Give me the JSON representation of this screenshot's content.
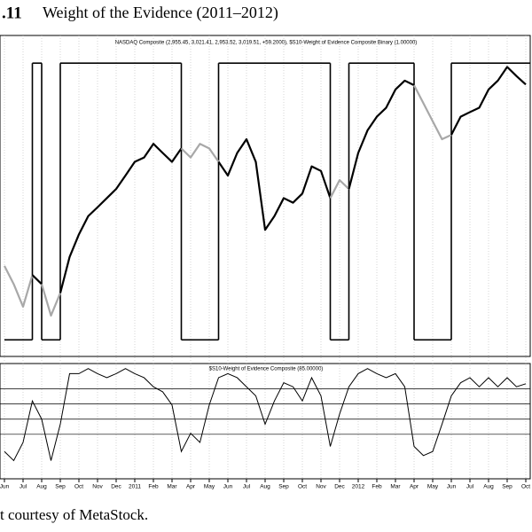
{
  "header": {
    "number": ".11",
    "title": "Weight of the Evidence (2011–2012)"
  },
  "caption": "t courtesy of MetaStock.",
  "chart_data": [
    {
      "type": "line",
      "title": "NASDAQ Composite (2,955.45, 3,021.41, 2,953.52, 3,019.51, +59.2000), $S10-Weight of Evidence Composite Binary (1.00000)",
      "ylim": [
        1968,
        3304
      ],
      "y2lim": [
        -0.06,
        1.1
      ],
      "series": [
        {
          "color": "#000000",
          "inactive_color": "#a8a8a8",
          "values": [
            2345,
            2269,
            2175,
            2307,
            2269,
            2138,
            2232,
            2382,
            2476,
            2552,
            2589,
            2627,
            2665,
            2721,
            2778,
            2796,
            2853,
            2815,
            2778,
            2834,
            2796,
            2853,
            2834,
            2778,
            2721,
            2815,
            2872,
            2778,
            2495,
            2552,
            2627,
            2608,
            2646,
            2759,
            2740,
            2627,
            2702,
            2665,
            2815,
            2909,
            2966,
            3003,
            3079,
            3116,
            3097,
            3022,
            2947,
            2872,
            2890,
            2966,
            2985,
            3003,
            3079,
            3116,
            3173,
            3135,
            3100
          ]
        },
        {
          "color": "#000000",
          "axis": "y2",
          "values": [
            0,
            0,
            0,
            1,
            0,
            0,
            1,
            1,
            1,
            1,
            1,
            1,
            1,
            1,
            1,
            1,
            1,
            1,
            1,
            0,
            0,
            0,
            0,
            1,
            1,
            1,
            1,
            1,
            1,
            1,
            1,
            1,
            1,
            1,
            1,
            0,
            0,
            1,
            1,
            1,
            1,
            1,
            1,
            1,
            0,
            0,
            0,
            0,
            1,
            1,
            1,
            1,
            1,
            1,
            1,
            1,
            1
          ]
        }
      ]
    },
    {
      "type": "line",
      "title": "$S10-Weight of Evidence Composite (85.00000)",
      "ylim": [
        -9,
        105
      ],
      "levels": [
        80,
        65,
        50,
        35
      ],
      "categories": [
        "Jun",
        null,
        "Jul",
        null,
        "Aug",
        null,
        "Sep",
        null,
        "Oct",
        null,
        "Nov",
        null,
        "Dec",
        null,
        "2011",
        null,
        "Feb",
        null,
        "Mar",
        null,
        "Apr",
        null,
        "May",
        null,
        "Jun",
        null,
        "Jul",
        null,
        "Aug",
        null,
        "Sep",
        null,
        "Oct",
        null,
        "Nov",
        null,
        "Dec",
        null,
        "2012",
        null,
        "Feb",
        null,
        "Mar",
        null,
        "Apr",
        null,
        "May",
        null,
        "Jun",
        null,
        "Jul",
        null,
        "Aug",
        null,
        "Sep",
        null,
        "Oct"
      ],
      "color": "#000000",
      "values": [
        18,
        9,
        27,
        68,
        50,
        9,
        45,
        95,
        95,
        100,
        95,
        91,
        95,
        100,
        95,
        91,
        82,
        77,
        64,
        18,
        36,
        27,
        64,
        91,
        95,
        91,
        82,
        73,
        45,
        68,
        86,
        82,
        68,
        91,
        73,
        23,
        55,
        82,
        95,
        100,
        95,
        91,
        95,
        82,
        23,
        14,
        18,
        45,
        73,
        86,
        91,
        82,
        91,
        82,
        91,
        82,
        85
      ]
    }
  ]
}
